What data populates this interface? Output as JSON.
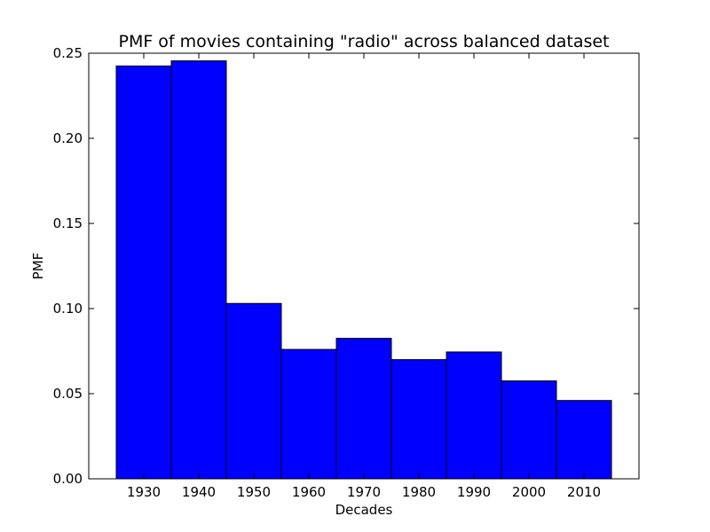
{
  "chart_data": {
    "type": "bar",
    "title": "PMF of movies containing \"radio\" across balanced dataset",
    "xlabel": "Decades",
    "ylabel": "PMF",
    "categories": [
      "1930",
      "1940",
      "1950",
      "1960",
      "1970",
      "1980",
      "1990",
      "2000",
      "2010"
    ],
    "x": [
      1930,
      1940,
      1950,
      1960,
      1970,
      1980,
      1990,
      2000,
      2010
    ],
    "bin_width": 10,
    "values": [
      0.2425,
      0.2455,
      0.103,
      0.076,
      0.0825,
      0.07,
      0.0745,
      0.0575,
      0.046
    ],
    "xlim": [
      1920,
      2020
    ],
    "ylim": [
      0.0,
      0.25
    ],
    "yticks": [
      "0.00",
      "0.05",
      "0.10",
      "0.15",
      "0.20",
      "0.25"
    ],
    "bar_color": "#0000ff",
    "grid": false
  }
}
